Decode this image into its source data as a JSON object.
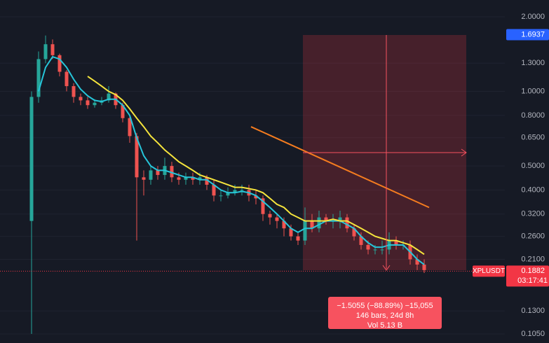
{
  "chart_data": {
    "type": "candlestick",
    "log_scale": true,
    "ylim": [
      0.0965,
      2.338
    ],
    "yticks": [
      {
        "value": 2,
        "label": "2.0000"
      },
      {
        "value": 1.3,
        "label": "1.3000"
      },
      {
        "value": 1,
        "label": "1.0000"
      },
      {
        "value": 0.8,
        "label": "0.8000"
      },
      {
        "value": 0.65,
        "label": "0.6500"
      },
      {
        "value": 0.5,
        "label": "0.5000"
      },
      {
        "value": 0.4,
        "label": "0.4000"
      },
      {
        "value": 0.32,
        "label": "0.3200"
      },
      {
        "value": 0.26,
        "label": "0.2600"
      },
      {
        "value": 0.21,
        "label": "0.2100"
      },
      {
        "value": 0.13,
        "label": "0.1300"
      },
      {
        "value": 0.105,
        "label": "0.1050"
      }
    ],
    "grid": true,
    "up_color": "#26a69a",
    "down_color": "#ef5350",
    "open": [
      0.3,
      0.95,
      1.35,
      1.55,
      1.4,
      1.2,
      1.05,
      0.95,
      0.92,
      0.88,
      0.9,
      0.92,
      0.98,
      0.88,
      0.78,
      0.66,
      0.45,
      0.44,
      0.48,
      0.46,
      0.5,
      0.45,
      0.44,
      0.45,
      0.44,
      0.45,
      0.42,
      0.38,
      0.38,
      0.39,
      0.4,
      0.4,
      0.38,
      0.37,
      0.32,
      0.31,
      0.3,
      0.28,
      0.26,
      0.25,
      0.3,
      0.28,
      0.31,
      0.3,
      0.3,
      0.31,
      0.28,
      0.26,
      0.24,
      0.23,
      0.23,
      0.23,
      0.25,
      0.24,
      0.24,
      0.21,
      0.2
    ],
    "high": [
      1.0,
      1.45,
      1.68,
      1.62,
      1.42,
      1.22,
      1.08,
      0.98,
      0.95,
      0.93,
      0.95,
      1.05,
      0.99,
      0.9,
      0.8,
      0.68,
      0.48,
      0.5,
      0.5,
      0.54,
      0.52,
      0.47,
      0.47,
      0.47,
      0.47,
      0.46,
      0.44,
      0.4,
      0.41,
      0.42,
      0.42,
      0.42,
      0.4,
      0.38,
      0.33,
      0.32,
      0.31,
      0.29,
      0.27,
      0.34,
      0.32,
      0.33,
      0.32,
      0.32,
      0.33,
      0.32,
      0.29,
      0.27,
      0.25,
      0.24,
      0.25,
      0.27,
      0.26,
      0.25,
      0.25,
      0.22,
      0.21
    ],
    "low": [
      0.105,
      0.9,
      1.3,
      1.35,
      1.15,
      1.0,
      0.9,
      0.88,
      0.85,
      0.86,
      0.88,
      0.9,
      0.85,
      0.75,
      0.62,
      0.25,
      0.38,
      0.42,
      0.44,
      0.44,
      0.43,
      0.42,
      0.42,
      0.42,
      0.42,
      0.4,
      0.36,
      0.36,
      0.37,
      0.38,
      0.38,
      0.36,
      0.35,
      0.3,
      0.29,
      0.28,
      0.26,
      0.25,
      0.24,
      0.24,
      0.27,
      0.27,
      0.29,
      0.28,
      0.28,
      0.27,
      0.25,
      0.23,
      0.22,
      0.22,
      0.22,
      0.22,
      0.23,
      0.23,
      0.2,
      0.19,
      0.185
    ],
    "close": [
      0.95,
      1.35,
      1.55,
      1.4,
      1.2,
      1.05,
      0.95,
      0.92,
      0.88,
      0.9,
      0.92,
      0.98,
      0.88,
      0.78,
      0.66,
      0.45,
      0.44,
      0.48,
      0.46,
      0.5,
      0.45,
      0.44,
      0.45,
      0.44,
      0.45,
      0.42,
      0.38,
      0.38,
      0.39,
      0.4,
      0.4,
      0.38,
      0.37,
      0.32,
      0.31,
      0.3,
      0.28,
      0.26,
      0.25,
      0.3,
      0.28,
      0.31,
      0.3,
      0.3,
      0.31,
      0.28,
      0.26,
      0.24,
      0.23,
      0.23,
      0.23,
      0.25,
      0.24,
      0.24,
      0.21,
      0.2,
      0.19
    ],
    "series": [
      {
        "color": "#26c6da",
        "values": [
          null,
          1.0,
          1.25,
          1.38,
          1.35,
          1.25,
          1.12,
          1.02,
          0.96,
          0.92,
          0.91,
          0.93,
          0.93,
          0.88,
          0.8,
          0.65,
          0.55,
          0.5,
          0.48,
          0.48,
          0.47,
          0.46,
          0.45,
          0.45,
          0.44,
          0.44,
          0.42,
          0.4,
          0.39,
          0.39,
          0.395,
          0.39,
          0.38,
          0.36,
          0.34,
          0.32,
          0.3,
          0.28,
          0.27,
          0.28,
          0.28,
          0.29,
          0.3,
          0.3,
          0.3,
          0.29,
          0.28,
          0.26,
          0.245,
          0.235,
          0.235,
          0.24,
          0.24,
          0.24,
          0.225,
          0.21,
          0.2
        ]
      },
      {
        "color": "#f5e43c",
        "values": [
          null,
          null,
          null,
          null,
          null,
          null,
          null,
          null,
          1.15,
          1.1,
          1.05,
          1.0,
          0.97,
          0.92,
          0.85,
          0.78,
          0.72,
          0.66,
          0.62,
          0.58,
          0.55,
          0.52,
          0.5,
          0.48,
          0.46,
          0.45,
          0.44,
          0.43,
          0.42,
          0.41,
          0.41,
          0.405,
          0.4,
          0.39,
          0.37,
          0.35,
          0.34,
          0.32,
          0.31,
          0.3,
          0.3,
          0.3,
          0.3,
          0.305,
          0.3,
          0.3,
          0.29,
          0.28,
          0.27,
          0.26,
          0.255,
          0.25,
          0.25,
          0.245,
          0.24,
          0.23,
          0.22
        ]
      }
    ],
    "trend_line": {
      "color": "#f57c1f",
      "x": [
        31.3,
        56.7
      ],
      "values": [
        0.72,
        0.34
      ]
    },
    "high_badge": 1.6937,
    "last_price": 0.1882,
    "symbol": "XPLUSDT",
    "countdown": "03:17:41",
    "measure": [
      "−1.5055 (−88.89%) −15,055",
      "146 bars, 24d 8h",
      "Vol 5.13 B"
    ]
  }
}
